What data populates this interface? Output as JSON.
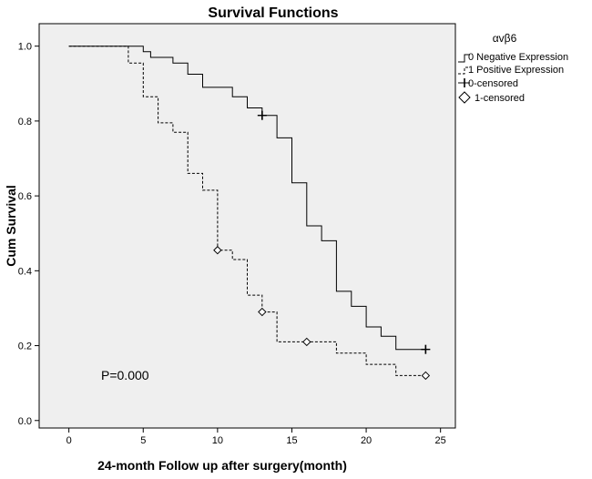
{
  "chart_data": {
    "type": "line",
    "subtype": "kaplan-meier",
    "title": "Survival Functions",
    "xlabel": "24-month Follow up after surgery(month)",
    "ylabel": "Cum Survival",
    "xlim": [
      -2,
      26
    ],
    "ylim": [
      -0.02,
      1.06
    ],
    "xticks": [
      0,
      5,
      10,
      15,
      20,
      25
    ],
    "yticks": [
      0.0,
      0.2,
      0.4,
      0.6,
      0.8,
      1.0
    ],
    "xtick_labels": [
      "0",
      "5",
      "10",
      "15",
      "20",
      "25"
    ],
    "ytick_labels": [
      "0.0",
      "0.2",
      "0.4",
      "0.6",
      "0.8",
      "1.0"
    ],
    "legend_title": "αvβ6",
    "legend_position": "top-right",
    "annotation": "P=0.000",
    "series": [
      {
        "name": "0 Negative Expression",
        "style": "solid",
        "points": [
          [
            0,
            1.0
          ],
          [
            5,
            1.0
          ],
          [
            5,
            0.985
          ],
          [
            5.5,
            0.985
          ],
          [
            5.5,
            0.97
          ],
          [
            7,
            0.97
          ],
          [
            7,
            0.955
          ],
          [
            8,
            0.955
          ],
          [
            8,
            0.925
          ],
          [
            9,
            0.925
          ],
          [
            9,
            0.89
          ],
          [
            11,
            0.89
          ],
          [
            11,
            0.865
          ],
          [
            12,
            0.865
          ],
          [
            12,
            0.835
          ],
          [
            13,
            0.835
          ],
          [
            13,
            0.815
          ],
          [
            14,
            0.815
          ],
          [
            14,
            0.755
          ],
          [
            15,
            0.755
          ],
          [
            15,
            0.635
          ],
          [
            16,
            0.635
          ],
          [
            16,
            0.52
          ],
          [
            17,
            0.52
          ],
          [
            17,
            0.48
          ],
          [
            18,
            0.48
          ],
          [
            18,
            0.345
          ],
          [
            19,
            0.345
          ],
          [
            19,
            0.305
          ],
          [
            20,
            0.305
          ],
          [
            20,
            0.25
          ],
          [
            21,
            0.25
          ],
          [
            21,
            0.225
          ],
          [
            22,
            0.225
          ],
          [
            22,
            0.19
          ],
          [
            24,
            0.19
          ]
        ],
        "censored": [
          [
            13,
            0.815
          ],
          [
            24,
            0.19
          ]
        ]
      },
      {
        "name": "1 Positive Expression",
        "style": "dashed",
        "points": [
          [
            0,
            1.0
          ],
          [
            4,
            1.0
          ],
          [
            4,
            0.955
          ],
          [
            5,
            0.955
          ],
          [
            5,
            0.865
          ],
          [
            6,
            0.865
          ],
          [
            6,
            0.795
          ],
          [
            7,
            0.795
          ],
          [
            7,
            0.77
          ],
          [
            8,
            0.77
          ],
          [
            8,
            0.66
          ],
          [
            9,
            0.66
          ],
          [
            9,
            0.615
          ],
          [
            10,
            0.615
          ],
          [
            10,
            0.455
          ],
          [
            11,
            0.455
          ],
          [
            11,
            0.43
          ],
          [
            12,
            0.43
          ],
          [
            12,
            0.335
          ],
          [
            13,
            0.335
          ],
          [
            13,
            0.29
          ],
          [
            14,
            0.29
          ],
          [
            14,
            0.21
          ],
          [
            16,
            0.21
          ],
          [
            16,
            0.21
          ],
          [
            18,
            0.21
          ],
          [
            18,
            0.18
          ],
          [
            20,
            0.18
          ],
          [
            20,
            0.15
          ],
          [
            22,
            0.15
          ],
          [
            22,
            0.12
          ],
          [
            24,
            0.12
          ]
        ],
        "censored": [
          [
            10,
            0.455
          ],
          [
            13,
            0.29
          ],
          [
            16,
            0.21
          ],
          [
            24,
            0.12
          ]
        ]
      }
    ],
    "legend": [
      "0 Negative Expression",
      "1 Positive Expression",
      "0-censored",
      "1-censored"
    ]
  }
}
